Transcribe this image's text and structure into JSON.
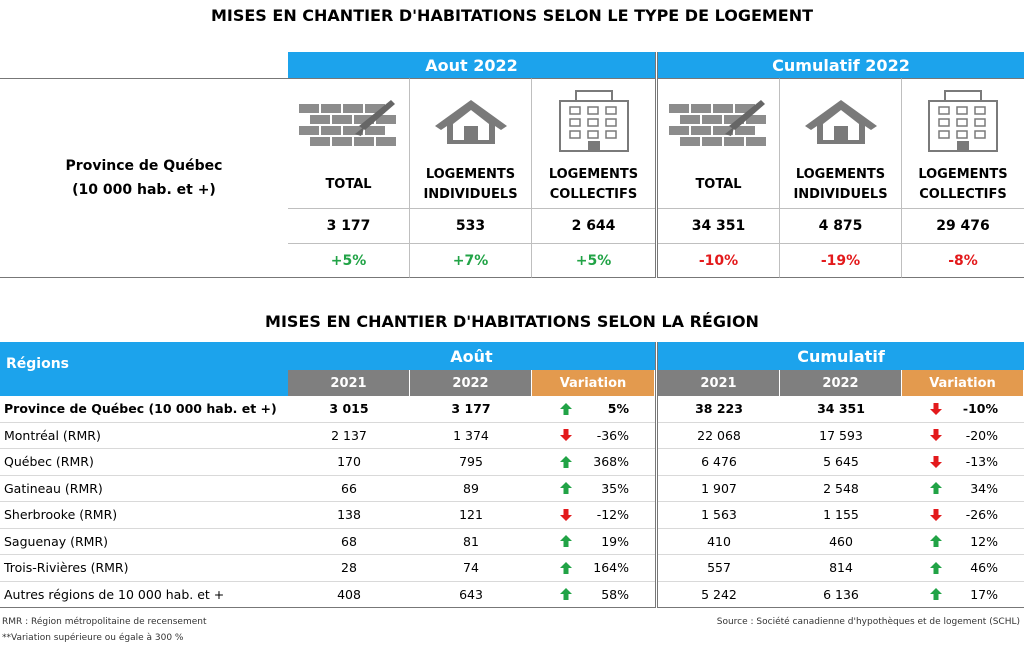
{
  "top": {
    "title": "MISES EN CHANTIER D'HABITATIONS SELON LE TYPE DE LOGEMENT",
    "row_label": [
      "Province de Québec",
      "(10 000 hab. et +)"
    ],
    "groups": [
      "Aout 2022",
      "Cumulatif 2022"
    ],
    "columns": [
      "TOTAL",
      "LOGEMENTS INDIVIDUELS",
      "LOGEMENTS COLLECTIFS",
      "TOTAL",
      "LOGEMENTS INDIVIDUELS",
      "LOGEMENTS COLLECTIFS"
    ],
    "values": [
      "3 177",
      "533",
      "2 644",
      "34 351",
      "4 875",
      "29 476"
    ],
    "variations": [
      "+5%",
      "+7%",
      "+5%",
      "-10%",
      "-19%",
      "-8%"
    ]
  },
  "regions": {
    "title": "MISES EN CHANTIER D'HABITATIONS SELON LA RÉGION",
    "header": "Régions",
    "groups": [
      "Août",
      "Cumulatif"
    ],
    "columns": [
      "2021",
      "2022",
      "Variation",
      "2021",
      "2022",
      "Variation"
    ],
    "rows": [
      [
        "Province de Québec (10 000 hab. et +)",
        "3 015",
        "3 177",
        "5%",
        "38 223",
        "34 351",
        "-10%"
      ],
      [
        "Montréal (RMR)",
        "2 137",
        "1 374",
        "-36%",
        "22 068",
        "17 593",
        "-20%"
      ],
      [
        "Québec (RMR)",
        "170",
        "795",
        "368%",
        "6 476",
        "5 645",
        "-13%"
      ],
      [
        "Gatineau (RMR)",
        "66",
        "89",
        "35%",
        "1 907",
        "2 548",
        "34%"
      ],
      [
        "Sherbrooke (RMR)",
        "138",
        "121",
        "-12%",
        "1 563",
        "1 155",
        "-26%"
      ],
      [
        "Saguenay (RMR)",
        "68",
        "81",
        "19%",
        "410",
        "460",
        "12%"
      ],
      [
        "Trois-Rivières (RMR)",
        "28",
        "74",
        "164%",
        "557",
        "814",
        "46%"
      ],
      [
        "Autres régions de 10 000  hab. et +",
        "408",
        "643",
        "58%",
        "5 242",
        "6 136",
        "17%"
      ]
    ]
  },
  "notes": [
    "RMR : Région métropolitaine de recensement",
    "**Variation supérieure ou égale à 300 %"
  ],
  "source": "Source : Société canadienne d'hypothèques et de logement (SCHL)"
}
